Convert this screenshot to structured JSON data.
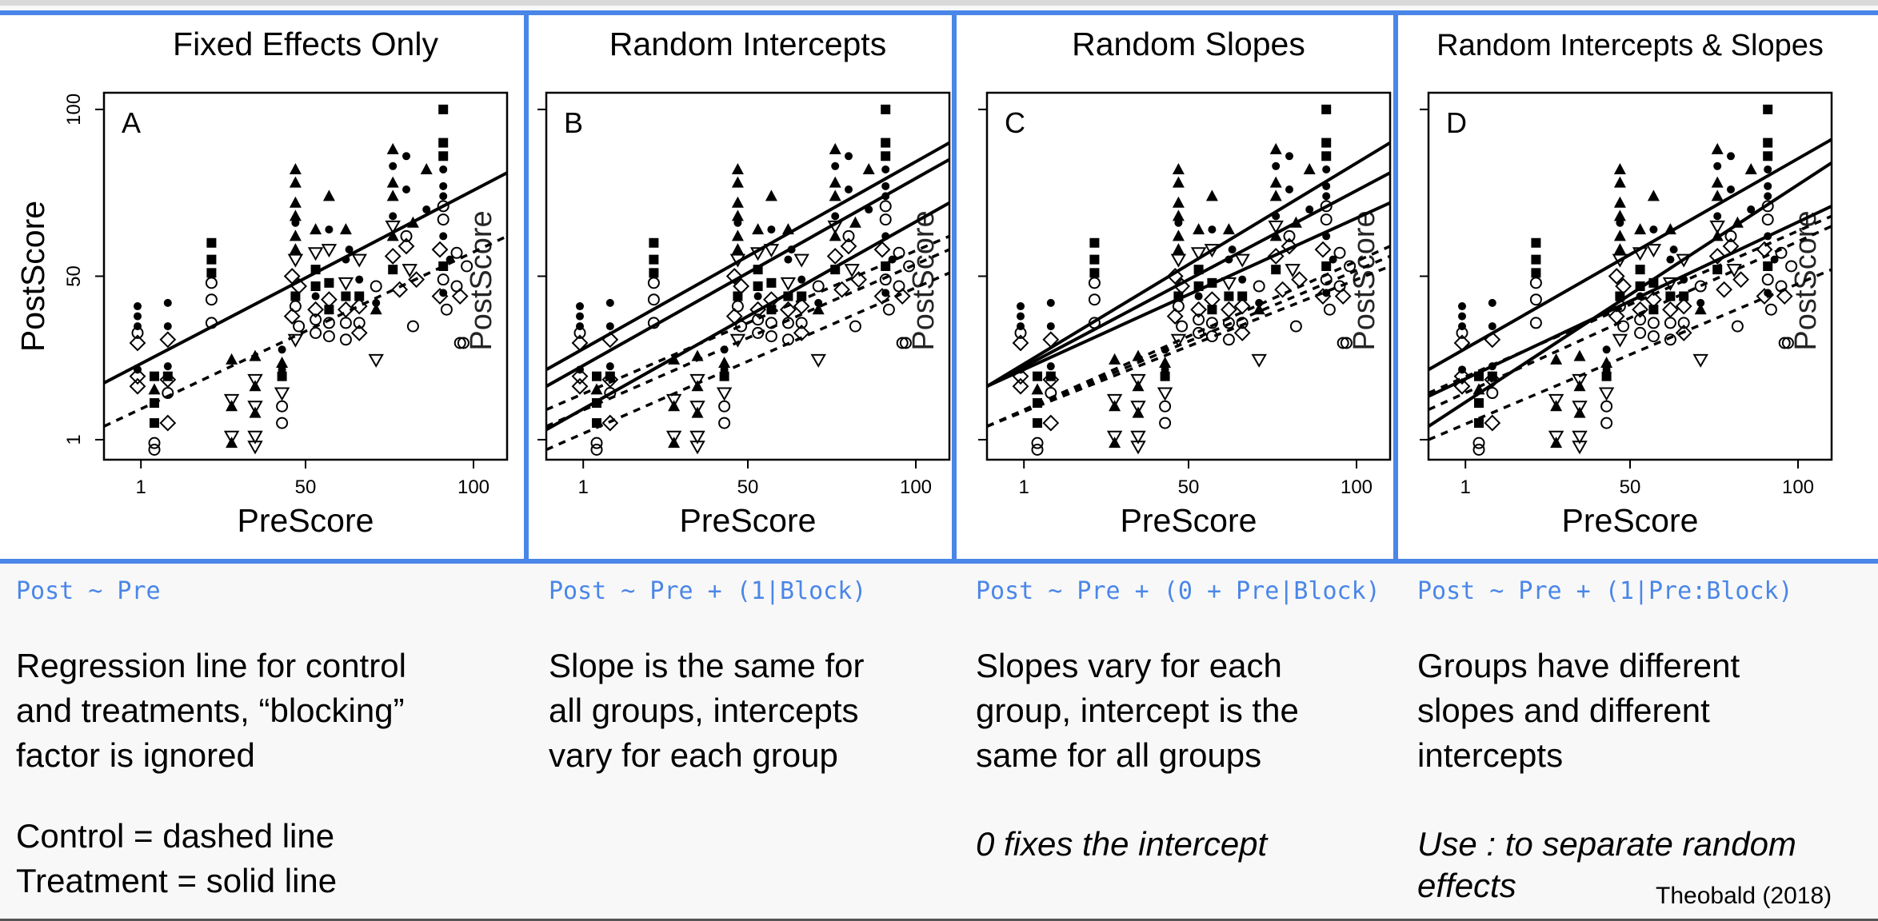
{
  "figure": {
    "y_axis_label": "PostScore",
    "x_axis_label": "PreScore",
    "rotated_overlay_text": "PostScore",
    "x_ticks": [
      "1",
      "50",
      "100"
    ],
    "y_ticks": [
      "1",
      "50",
      "100"
    ]
  },
  "chart_data": [
    {
      "type": "scatter",
      "title": "Fixed Effects Only",
      "panel_letter": "A",
      "xlabel": "PreScore",
      "ylabel": "PostScore",
      "xlim": [
        -10,
        110
      ],
      "ylim": [
        -5,
        105
      ],
      "lines": [
        {
          "name": "",
          "style": "solid",
          "x": [
            -10,
            110
          ],
          "y": [
            18,
            81
          ]
        },
        {
          "name": "",
          "style": "dashed",
          "x": [
            -10,
            110
          ],
          "y": [
            5,
            62
          ]
        }
      ]
    },
    {
      "type": "scatter",
      "title": "Random Intercepts",
      "panel_letter": "B",
      "xlabel": "PreScore",
      "ylabel": "PostScore",
      "xlim": [
        -10,
        110
      ],
      "ylim": [
        -5,
        105
      ],
      "lines": [
        {
          "name": "",
          "style": "solid",
          "x": [
            -10,
            110
          ],
          "y": [
            22,
            90
          ]
        },
        {
          "name": "",
          "style": "solid",
          "x": [
            -10,
            110
          ],
          "y": [
            17,
            85
          ]
        },
        {
          "name": "",
          "style": "solid",
          "x": [
            -10,
            110
          ],
          "y": [
            4,
            72
          ]
        },
        {
          "name": "",
          "style": "dashed",
          "x": [
            -10,
            110
          ],
          "y": [
            10,
            62
          ]
        },
        {
          "name": "",
          "style": "dashed",
          "x": [
            -10,
            110
          ],
          "y": [
            5,
            58
          ]
        },
        {
          "name": "",
          "style": "dashed",
          "x": [
            -10,
            110
          ],
          "y": [
            -2,
            51
          ]
        }
      ]
    },
    {
      "type": "scatter",
      "title": "Random Slopes",
      "panel_letter": "C",
      "xlabel": "PreScore",
      "ylabel": "PostScore",
      "xlim": [
        -10,
        110
      ],
      "ylim": [
        -5,
        105
      ],
      "lines": [
        {
          "name": "",
          "style": "solid",
          "x": [
            -10,
            110
          ],
          "y": [
            17,
            90
          ]
        },
        {
          "name": "",
          "style": "solid",
          "x": [
            -10,
            110
          ],
          "y": [
            17,
            81
          ]
        },
        {
          "name": "",
          "style": "solid",
          "x": [
            -10,
            110
          ],
          "y": [
            17,
            72
          ]
        },
        {
          "name": "",
          "style": "dashed",
          "x": [
            -10,
            110
          ],
          "y": [
            5,
            59
          ]
        },
        {
          "name": "",
          "style": "dashed",
          "x": [
            -10,
            110
          ],
          "y": [
            5,
            56
          ]
        },
        {
          "name": "",
          "style": "dashed",
          "x": [
            -10,
            110
          ],
          "y": [
            5,
            53
          ]
        }
      ]
    },
    {
      "type": "scatter",
      "title": "Random Intercepts & Slopes",
      "panel_letter": "D",
      "xlabel": "PreScore",
      "ylabel": "PostScore",
      "xlim": [
        -10,
        110
      ],
      "ylim": [
        -5,
        105
      ],
      "lines": [
        {
          "name": "",
          "style": "solid",
          "x": [
            -10,
            110
          ],
          "y": [
            22,
            91
          ]
        },
        {
          "name": "",
          "style": "solid",
          "x": [
            -10,
            110
          ],
          "y": [
            5,
            84
          ]
        },
        {
          "name": "",
          "style": "solid",
          "x": [
            -10,
            110
          ],
          "y": [
            14,
            71
          ]
        },
        {
          "name": "",
          "style": "dashed",
          "x": [
            -10,
            110
          ],
          "y": [
            15,
            68
          ]
        },
        {
          "name": "",
          "style": "dashed",
          "x": [
            -10,
            110
          ],
          "y": [
            10,
            65
          ]
        },
        {
          "name": "",
          "style": "dashed",
          "x": [
            -10,
            110
          ],
          "y": [
            1,
            52
          ]
        }
      ]
    }
  ],
  "points": [
    {
      "s": "dot",
      "x": 0,
      "y": 41
    },
    {
      "s": "dot",
      "x": 0,
      "y": 38
    },
    {
      "s": "dot",
      "x": 0,
      "y": 35
    },
    {
      "s": "circle",
      "x": 0,
      "y": 33
    },
    {
      "s": "diamond",
      "x": 0,
      "y": 30
    },
    {
      "s": "diamond",
      "x": 0,
      "y": 20
    },
    {
      "s": "diamond",
      "x": 0,
      "y": 17
    },
    {
      "s": "dot",
      "x": 0,
      "y": 22
    },
    {
      "s": "square",
      "x": 5,
      "y": 20
    },
    {
      "s": "square",
      "x": 5,
      "y": 12
    },
    {
      "s": "triangle",
      "x": 5,
      "y": 16
    },
    {
      "s": "square",
      "x": 5,
      "y": 6
    },
    {
      "s": "circle",
      "x": 5,
      "y": 0
    },
    {
      "s": "circle",
      "x": 5,
      "y": -2
    },
    {
      "s": "dot",
      "x": 9,
      "y": 42
    },
    {
      "s": "dot",
      "x": 9,
      "y": 35
    },
    {
      "s": "diamond",
      "x": 9,
      "y": 31
    },
    {
      "s": "diamond",
      "x": 9,
      "y": 19
    },
    {
      "s": "diamond",
      "x": 9,
      "y": 6
    },
    {
      "s": "square",
      "x": 9,
      "y": 20
    },
    {
      "s": "circle",
      "x": 9,
      "y": 15
    },
    {
      "s": "dot",
      "x": 9,
      "y": 23
    },
    {
      "s": "square",
      "x": 22,
      "y": 60
    },
    {
      "s": "square",
      "x": 22,
      "y": 55
    },
    {
      "s": "square",
      "x": 22,
      "y": 51
    },
    {
      "s": "circle",
      "x": 22,
      "y": 48
    },
    {
      "s": "circle",
      "x": 22,
      "y": 43
    },
    {
      "s": "circle",
      "x": 22,
      "y": 36
    },
    {
      "s": "triangle",
      "x": 28,
      "y": 25
    },
    {
      "s": "tri_down",
      "x": 28,
      "y": 13
    },
    {
      "s": "triangle",
      "x": 28,
      "y": 11
    },
    {
      "s": "tri_down",
      "x": 28,
      "y": 2
    },
    {
      "s": "triangle",
      "x": 28,
      "y": 0
    },
    {
      "s": "triangle",
      "x": 35,
      "y": 26
    },
    {
      "s": "tri_down",
      "x": 35,
      "y": 19
    },
    {
      "s": "triangle",
      "x": 35,
      "y": 17
    },
    {
      "s": "tri_down",
      "x": 35,
      "y": 11
    },
    {
      "s": "triangle",
      "x": 35,
      "y": 9
    },
    {
      "s": "tri_down",
      "x": 35,
      "y": 2
    },
    {
      "s": "tri_down",
      "x": 35,
      "y": -1
    },
    {
      "s": "dot",
      "x": 43,
      "y": 28
    },
    {
      "s": "dot",
      "x": 43,
      "y": 22
    },
    {
      "s": "square",
      "x": 43,
      "y": 20
    },
    {
      "s": "tri_down",
      "x": 43,
      "y": 15
    },
    {
      "s": "circle",
      "x": 43,
      "y": 11
    },
    {
      "s": "circle",
      "x": 43,
      "y": 6
    },
    {
      "s": "triangle",
      "x": 43,
      "y": 24
    },
    {
      "s": "triangle",
      "x": 47,
      "y": 82
    },
    {
      "s": "triangle",
      "x": 47,
      "y": 78
    },
    {
      "s": "triangle",
      "x": 47,
      "y": 72
    },
    {
      "s": "triangle",
      "x": 47,
      "y": 68
    },
    {
      "s": "dot",
      "x": 47,
      "y": 66
    },
    {
      "s": "triangle",
      "x": 47,
      "y": 62
    },
    {
      "s": "triangle",
      "x": 47,
      "y": 58
    },
    {
      "s": "tri_down",
      "x": 47,
      "y": 55
    },
    {
      "s": "diamond",
      "x": 46,
      "y": 50
    },
    {
      "s": "diamond",
      "x": 48,
      "y": 47
    },
    {
      "s": "square",
      "x": 47,
      "y": 44
    },
    {
      "s": "circle",
      "x": 47,
      "y": 41
    },
    {
      "s": "diamond",
      "x": 46,
      "y": 38
    },
    {
      "s": "circle",
      "x": 48,
      "y": 35
    },
    {
      "s": "tri_down",
      "x": 47,
      "y": 31
    },
    {
      "s": "triangle",
      "x": 53,
      "y": 64
    },
    {
      "s": "tri_down",
      "x": 53,
      "y": 57
    },
    {
      "s": "square",
      "x": 53,
      "y": 52
    },
    {
      "s": "square",
      "x": 53,
      "y": 47
    },
    {
      "s": "diamond",
      "x": 53,
      "y": 40
    },
    {
      "s": "circle",
      "x": 53,
      "y": 37
    },
    {
      "s": "circle",
      "x": 53,
      "y": 33
    },
    {
      "s": "dot",
      "x": 53,
      "y": 44
    },
    {
      "s": "triangle",
      "x": 57,
      "y": 74
    },
    {
      "s": "dot",
      "x": 57,
      "y": 64
    },
    {
      "s": "tri_down",
      "x": 57,
      "y": 58
    },
    {
      "s": "square",
      "x": 57,
      "y": 48
    },
    {
      "s": "diamond",
      "x": 57,
      "y": 43
    },
    {
      "s": "circle",
      "x": 57,
      "y": 36
    },
    {
      "s": "circle",
      "x": 57,
      "y": 32
    },
    {
      "s": "square",
      "x": 57,
      "y": 40
    },
    {
      "s": "triangle",
      "x": 62,
      "y": 64
    },
    {
      "s": "dot",
      "x": 62,
      "y": 55
    },
    {
      "s": "tri_down",
      "x": 62,
      "y": 48
    },
    {
      "s": "square",
      "x": 62,
      "y": 44
    },
    {
      "s": "diamond",
      "x": 62,
      "y": 40
    },
    {
      "s": "circle",
      "x": 62,
      "y": 36
    },
    {
      "s": "circle",
      "x": 62,
      "y": 31
    },
    {
      "s": "dot",
      "x": 63,
      "y": 58
    },
    {
      "s": "tri_down",
      "x": 66,
      "y": 55
    },
    {
      "s": "dot",
      "x": 66,
      "y": 49
    },
    {
      "s": "square",
      "x": 66,
      "y": 44
    },
    {
      "s": "diamond",
      "x": 66,
      "y": 41
    },
    {
      "s": "circle",
      "x": 66,
      "y": 36
    },
    {
      "s": "diamond",
      "x": 66,
      "y": 33
    },
    {
      "s": "triangle",
      "x": 71,
      "y": 40
    },
    {
      "s": "tri_down",
      "x": 71,
      "y": 25
    },
    {
      "s": "dot",
      "x": 71,
      "y": 42
    },
    {
      "s": "circle",
      "x": 71,
      "y": 47
    },
    {
      "s": "triangle",
      "x": 76,
      "y": 88
    },
    {
      "s": "dot",
      "x": 76,
      "y": 83
    },
    {
      "s": "triangle",
      "x": 76,
      "y": 78
    },
    {
      "s": "triangle",
      "x": 76,
      "y": 74
    },
    {
      "s": "dot",
      "x": 76,
      "y": 68
    },
    {
      "s": "tri_down",
      "x": 76,
      "y": 65
    },
    {
      "s": "triangle",
      "x": 76,
      "y": 62
    },
    {
      "s": "diamond",
      "x": 76,
      "y": 56
    },
    {
      "s": "square",
      "x": 76,
      "y": 52
    },
    {
      "s": "diamond",
      "x": 78,
      "y": 46
    },
    {
      "s": "dot",
      "x": 80,
      "y": 86
    },
    {
      "s": "dot",
      "x": 80,
      "y": 76
    },
    {
      "s": "circle",
      "x": 80,
      "y": 62
    },
    {
      "s": "diamond",
      "x": 80,
      "y": 59
    },
    {
      "s": "tri_down",
      "x": 81,
      "y": 52
    },
    {
      "s": "triangle",
      "x": 82,
      "y": 66
    },
    {
      "s": "circle",
      "x": 82,
      "y": 35
    },
    {
      "s": "diamond",
      "x": 83,
      "y": 49
    },
    {
      "s": "triangle",
      "x": 86,
      "y": 82
    },
    {
      "s": "dot",
      "x": 86,
      "y": 70
    },
    {
      "s": "square",
      "x": 91,
      "y": 100
    },
    {
      "s": "square",
      "x": 91,
      "y": 90
    },
    {
      "s": "square",
      "x": 91,
      "y": 86
    },
    {
      "s": "dot",
      "x": 91,
      "y": 82
    },
    {
      "s": "dot",
      "x": 91,
      "y": 77
    },
    {
      "s": "dot",
      "x": 91,
      "y": 74
    },
    {
      "s": "circle",
      "x": 91,
      "y": 71
    },
    {
      "s": "circle",
      "x": 91,
      "y": 67
    },
    {
      "s": "dot",
      "x": 91,
      "y": 62
    },
    {
      "s": "diamond",
      "x": 90,
      "y": 58
    },
    {
      "s": "square",
      "x": 91,
      "y": 53
    },
    {
      "s": "circle",
      "x": 91,
      "y": 49
    },
    {
      "s": "dot",
      "x": 91,
      "y": 45
    },
    {
      "s": "diamond",
      "x": 90,
      "y": 44
    },
    {
      "s": "circle",
      "x": 92,
      "y": 40
    },
    {
      "s": "dot",
      "x": 93,
      "y": 55
    },
    {
      "s": "circle",
      "x": 95,
      "y": 57
    },
    {
      "s": "circle",
      "x": 95,
      "y": 47
    },
    {
      "s": "circle",
      "x": 96,
      "y": 30
    },
    {
      "s": "circle",
      "x": 97,
      "y": 30
    },
    {
      "s": "diamond",
      "x": 96,
      "y": 44
    },
    {
      "s": "circle",
      "x": 98,
      "y": 53
    }
  ],
  "captions": [
    {
      "code": "Post ~ Pre",
      "desc": [
        "Regression line for control",
        "and treatments, “blocking”",
        "factor is ignored"
      ],
      "note": ""
    },
    {
      "code": "Post ~ Pre + (1|Block)",
      "desc": [
        "Slope is the same for",
        "all groups, intercepts",
        "vary for each group"
      ],
      "note": ""
    },
    {
      "code": "Post ~ Pre + (0 + Pre|Block)",
      "desc": [
        "Slopes vary for each",
        "group, intercept is the",
        "same for all groups"
      ],
      "note": "0 fixes the intercept"
    },
    {
      "code": "Post ~ Pre + (1|Pre:Block)",
      "desc": [
        "Groups have different",
        "slopes and different",
        "intercepts"
      ],
      "note": "Use : to separate random effects"
    }
  ],
  "legend_lines": [
    "Control = dashed line",
    "Treatment = solid line"
  ],
  "citation": "Theobald (2018)",
  "colors": {
    "accent": "#4a86e8",
    "ink": "#000000"
  }
}
